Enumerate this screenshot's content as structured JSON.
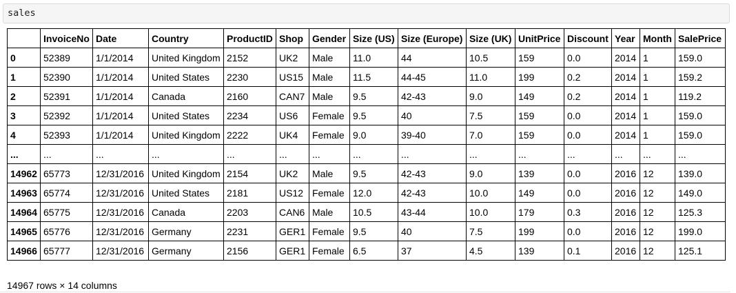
{
  "input_cell": {
    "code": "sales"
  },
  "table": {
    "columns": [
      "",
      "InvoiceNo",
      "Date",
      "Country",
      "ProductID",
      "Shop",
      "Gender",
      "Size (US)",
      "Size (Europe)",
      "Size (UK)",
      "UnitPrice",
      "Discount",
      "Year",
      "Month",
      "SalePrice"
    ],
    "rows": [
      [
        "0",
        "52389",
        "1/1/2014",
        "United Kingdom",
        "2152",
        "UK2",
        "Male",
        "11.0",
        "44",
        "10.5",
        "159",
        "0.0",
        "2014",
        "1",
        "159.0"
      ],
      [
        "1",
        "52390",
        "1/1/2014",
        "United States",
        "2230",
        "US15",
        "Male",
        "11.5",
        "44-45",
        "11.0",
        "199",
        "0.2",
        "2014",
        "1",
        "159.2"
      ],
      [
        "2",
        "52391",
        "1/1/2014",
        "Canada",
        "2160",
        "CAN7",
        "Male",
        "9.5",
        "42-43",
        "9.0",
        "149",
        "0.2",
        "2014",
        "1",
        "119.2"
      ],
      [
        "3",
        "52392",
        "1/1/2014",
        "United States",
        "2234",
        "US6",
        "Female",
        "9.5",
        "40",
        "7.5",
        "159",
        "0.0",
        "2014",
        "1",
        "159.0"
      ],
      [
        "4",
        "52393",
        "1/1/2014",
        "United Kingdom",
        "2222",
        "UK4",
        "Female",
        "9.0",
        "39-40",
        "7.0",
        "159",
        "0.0",
        "2014",
        "1",
        "159.0"
      ],
      [
        "...",
        "...",
        "...",
        "...",
        "...",
        "...",
        "...",
        "...",
        "...",
        "...",
        "...",
        "...",
        "...",
        "...",
        "..."
      ],
      [
        "14962",
        "65773",
        "12/31/2016",
        "United Kingdom",
        "2154",
        "UK2",
        "Male",
        "9.5",
        "42-43",
        "9.0",
        "139",
        "0.0",
        "2016",
        "12",
        "139.0"
      ],
      [
        "14963",
        "65774",
        "12/31/2016",
        "United States",
        "2181",
        "US12",
        "Female",
        "12.0",
        "42-43",
        "10.0",
        "149",
        "0.0",
        "2016",
        "12",
        "149.0"
      ],
      [
        "14964",
        "65775",
        "12/31/2016",
        "Canada",
        "2203",
        "CAN6",
        "Male",
        "10.5",
        "43-44",
        "10.0",
        "179",
        "0.3",
        "2016",
        "12",
        "125.3"
      ],
      [
        "14965",
        "65776",
        "12/31/2016",
        "Germany",
        "2231",
        "GER1",
        "Female",
        "9.5",
        "40",
        "7.5",
        "199",
        "0.0",
        "2016",
        "12",
        "199.0"
      ],
      [
        "14966",
        "65777",
        "12/31/2016",
        "Germany",
        "2156",
        "GER1",
        "Female",
        "6.5",
        "37",
        "4.5",
        "139",
        "0.1",
        "2016",
        "12",
        "125.1"
      ]
    ]
  },
  "shape_text": "14967 rows × 14 columns"
}
